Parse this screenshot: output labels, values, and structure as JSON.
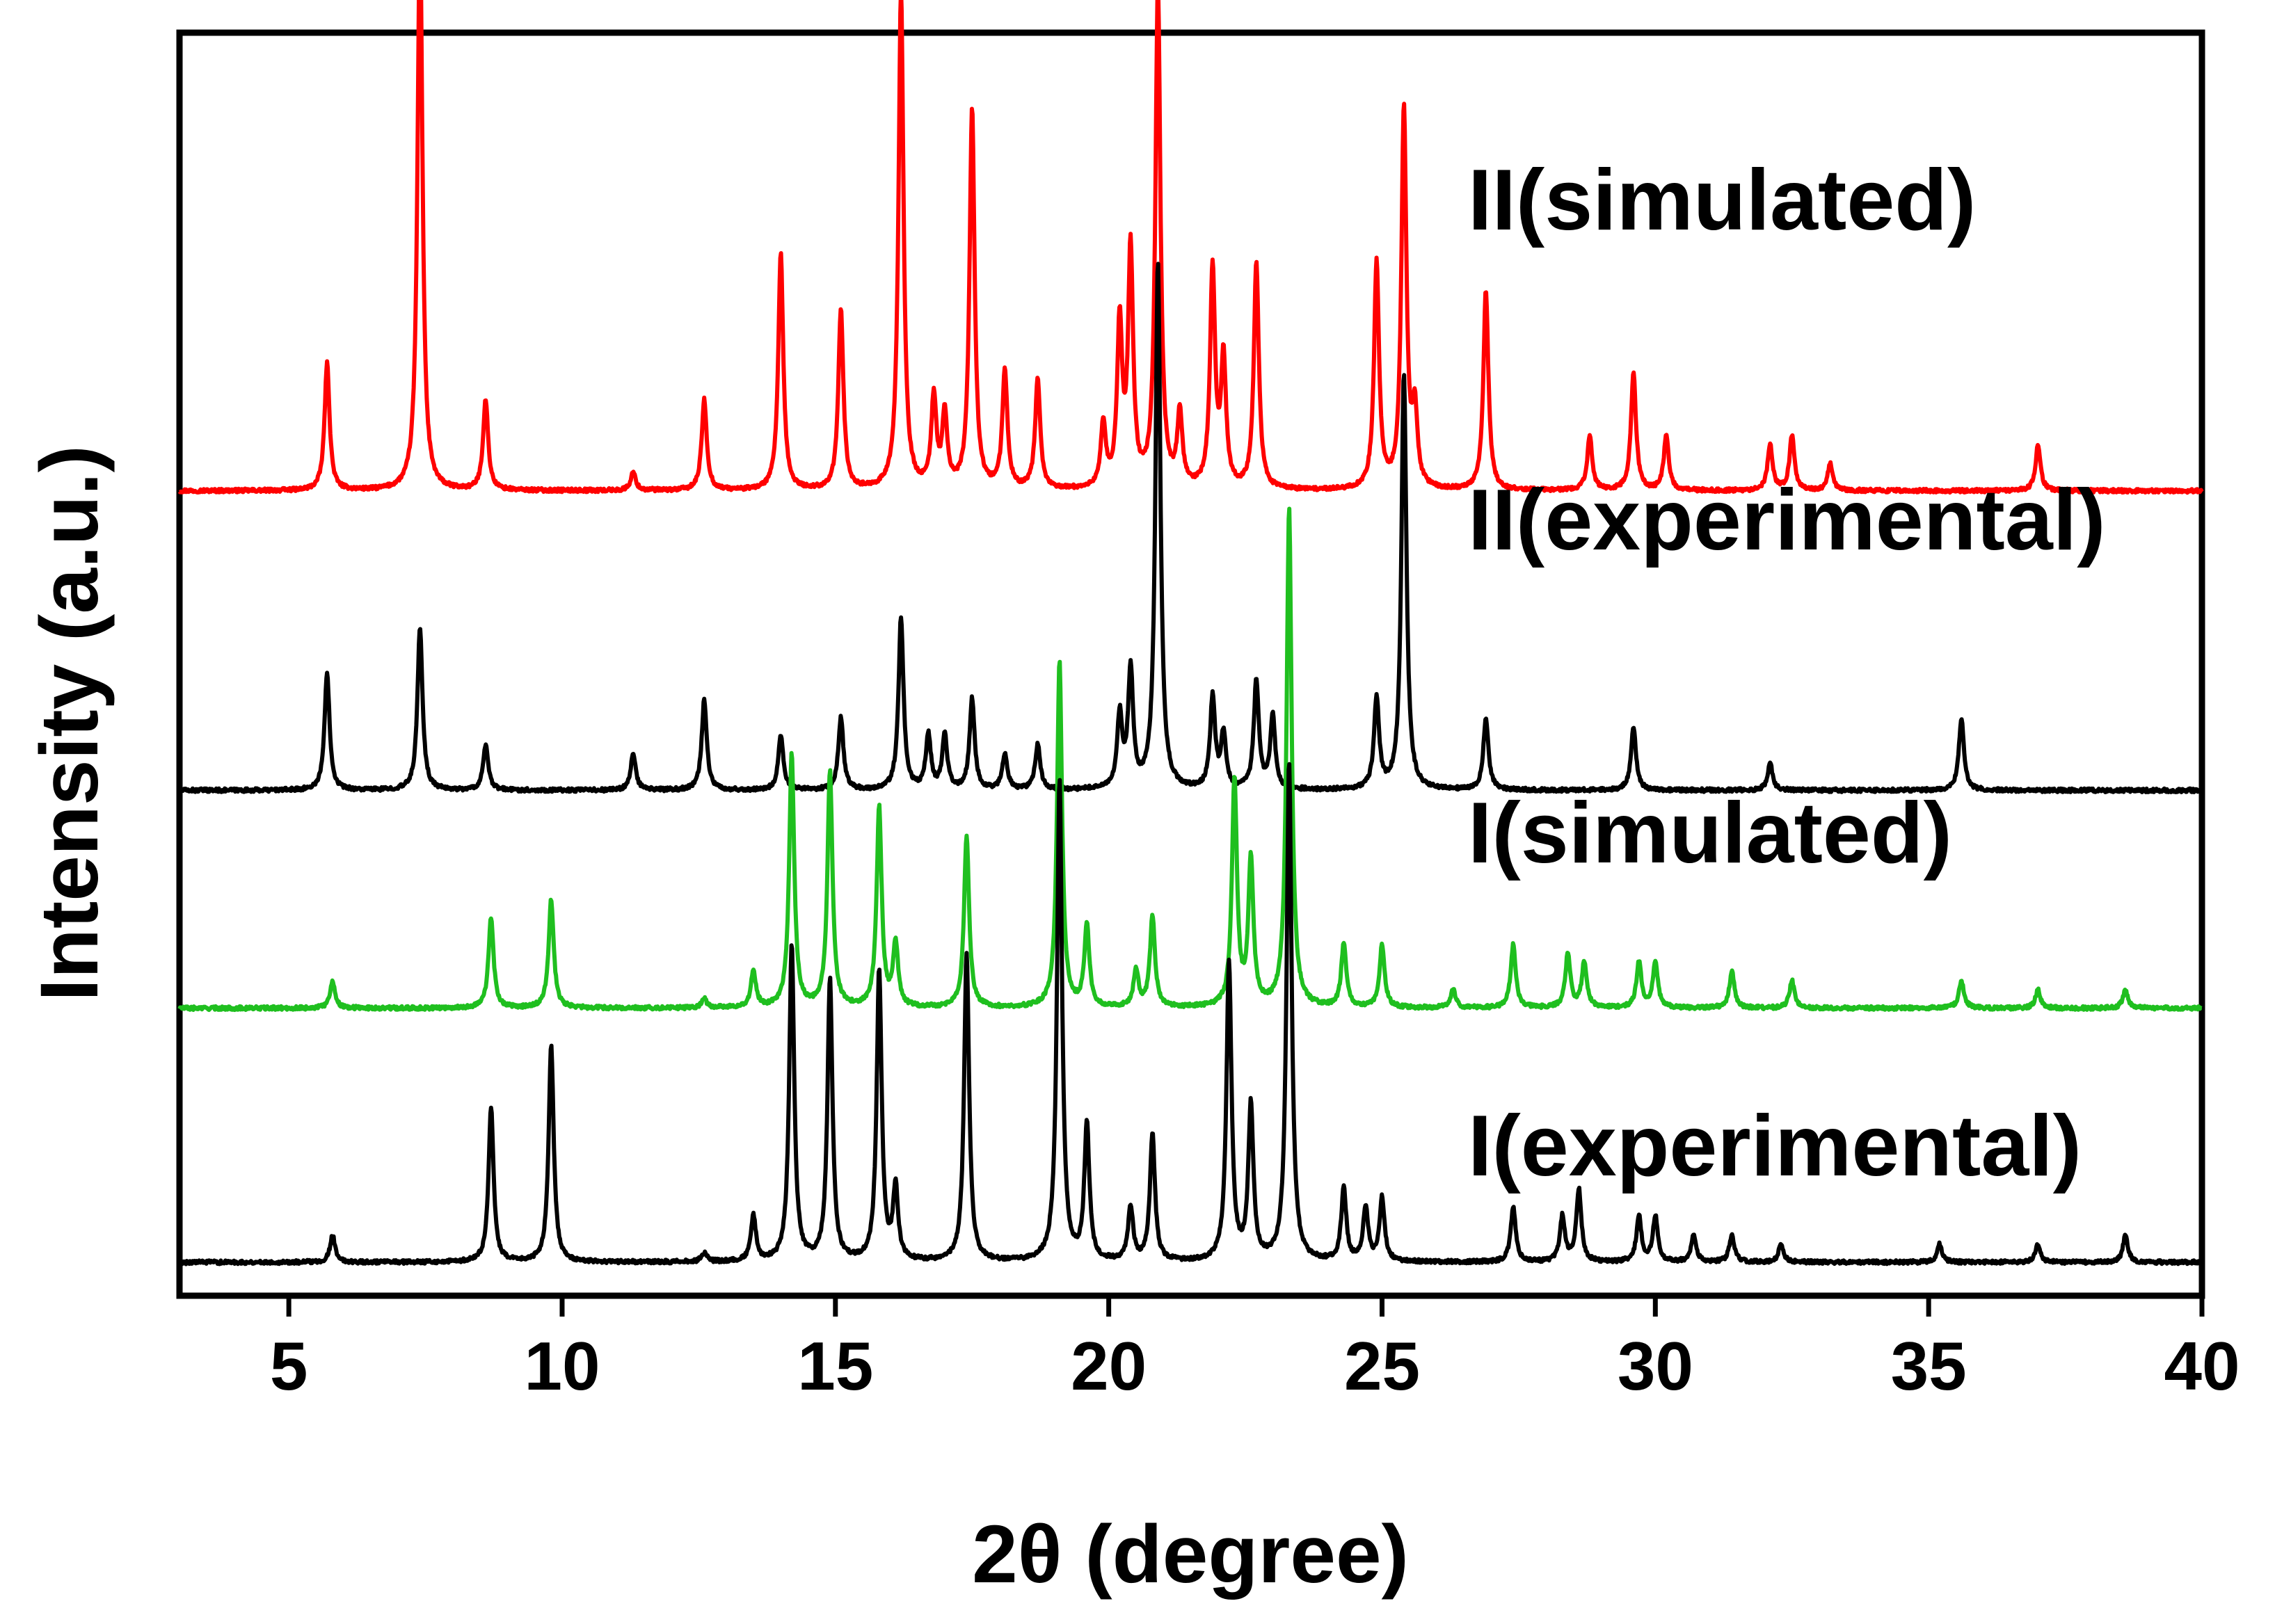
{
  "chart_data": {
    "type": "line",
    "xlabel": "2θ (degree)",
    "ylabel": "Intensity (a.u.)",
    "xlim": [
      3,
      40
    ],
    "x_ticks": [
      5,
      10,
      15,
      20,
      25,
      30,
      35,
      40
    ],
    "x_tick_labels": [
      "5",
      "10",
      "15",
      "20",
      "25",
      "30",
      "35",
      "40"
    ],
    "y_ticks_shown": false,
    "grid": false,
    "legend": "none; series labels printed beside each curve",
    "series": [
      {
        "name": "II(simulated)",
        "color": "#ff0000",
        "offset": 0.85,
        "peaks": [
          [
            5.7,
            0.14
          ],
          [
            7.4,
            0.62
          ],
          [
            8.6,
            0.1
          ],
          [
            11.3,
            0.02
          ],
          [
            12.6,
            0.1
          ],
          [
            14.0,
            0.26
          ],
          [
            15.1,
            0.2
          ],
          [
            16.2,
            0.55
          ],
          [
            16.8,
            0.1
          ],
          [
            17.0,
            0.08
          ],
          [
            17.5,
            0.42
          ],
          [
            18.1,
            0.13
          ],
          [
            18.7,
            0.12
          ],
          [
            19.9,
            0.07
          ],
          [
            20.2,
            0.18
          ],
          [
            20.4,
            0.26
          ],
          [
            20.9,
            0.55
          ],
          [
            21.3,
            0.08
          ],
          [
            21.9,
            0.24
          ],
          [
            22.1,
            0.14
          ],
          [
            22.7,
            0.25
          ],
          [
            24.9,
            0.25
          ],
          [
            25.4,
            0.42
          ],
          [
            25.6,
            0.08
          ],
          [
            26.9,
            0.22
          ],
          [
            28.8,
            0.06
          ],
          [
            29.6,
            0.13
          ],
          [
            30.2,
            0.06
          ],
          [
            32.1,
            0.05
          ],
          [
            32.5,
            0.06
          ],
          [
            33.2,
            0.03
          ],
          [
            37.0,
            0.05
          ]
        ]
      },
      {
        "name": "II(experimental)",
        "color": "#000000",
        "offset": 0.52,
        "peaks": [
          [
            5.7,
            0.13
          ],
          [
            7.4,
            0.18
          ],
          [
            8.6,
            0.05
          ],
          [
            11.3,
            0.04
          ],
          [
            12.6,
            0.1
          ],
          [
            14.0,
            0.06
          ],
          [
            15.1,
            0.08
          ],
          [
            16.2,
            0.19
          ],
          [
            16.7,
            0.06
          ],
          [
            17.0,
            0.06
          ],
          [
            17.5,
            0.1
          ],
          [
            18.1,
            0.04
          ],
          [
            18.7,
            0.05
          ],
          [
            20.2,
            0.08
          ],
          [
            20.4,
            0.13
          ],
          [
            20.9,
            0.58
          ],
          [
            21.9,
            0.1
          ],
          [
            22.1,
            0.06
          ],
          [
            22.7,
            0.12
          ],
          [
            23.0,
            0.08
          ],
          [
            24.9,
            0.1
          ],
          [
            25.4,
            0.46
          ],
          [
            26.9,
            0.08
          ],
          [
            29.6,
            0.07
          ],
          [
            32.1,
            0.03
          ],
          [
            35.6,
            0.08
          ]
        ]
      },
      {
        "name": "I(simulated)",
        "color": "#1fbf1f",
        "offset": 0.28,
        "peaks": [
          [
            5.8,
            0.03
          ],
          [
            8.7,
            0.1
          ],
          [
            9.8,
            0.12
          ],
          [
            12.6,
            0.01
          ],
          [
            13.5,
            0.04
          ],
          [
            14.2,
            0.28
          ],
          [
            14.9,
            0.26
          ],
          [
            15.8,
            0.22
          ],
          [
            16.1,
            0.07
          ],
          [
            17.4,
            0.19
          ],
          [
            19.1,
            0.38
          ],
          [
            19.6,
            0.09
          ],
          [
            20.5,
            0.04
          ],
          [
            20.8,
            0.1
          ],
          [
            22.3,
            0.25
          ],
          [
            22.6,
            0.16
          ],
          [
            23.3,
            0.55
          ],
          [
            24.3,
            0.07
          ],
          [
            25.0,
            0.07
          ],
          [
            26.3,
            0.02
          ],
          [
            27.4,
            0.07
          ],
          [
            28.4,
            0.06
          ],
          [
            28.7,
            0.05
          ],
          [
            29.7,
            0.05
          ],
          [
            30.0,
            0.05
          ],
          [
            31.4,
            0.04
          ],
          [
            32.5,
            0.03
          ],
          [
            35.6,
            0.03
          ],
          [
            37.0,
            0.02
          ],
          [
            38.6,
            0.02
          ]
        ]
      },
      {
        "name": "I(experimental)",
        "color": "#000000",
        "offset": 0.0,
        "peaks": [
          [
            5.8,
            0.03
          ],
          [
            8.7,
            0.17
          ],
          [
            9.8,
            0.24
          ],
          [
            12.6,
            0.01
          ],
          [
            13.5,
            0.05
          ],
          [
            14.2,
            0.35
          ],
          [
            14.9,
            0.31
          ],
          [
            15.8,
            0.32
          ],
          [
            16.1,
            0.08
          ],
          [
            17.4,
            0.34
          ],
          [
            19.1,
            0.53
          ],
          [
            19.6,
            0.15
          ],
          [
            20.4,
            0.06
          ],
          [
            20.8,
            0.14
          ],
          [
            22.2,
            0.33
          ],
          [
            22.6,
            0.17
          ],
          [
            23.3,
            0.55
          ],
          [
            24.3,
            0.08
          ],
          [
            24.7,
            0.06
          ],
          [
            25.0,
            0.07
          ],
          [
            27.4,
            0.06
          ],
          [
            28.3,
            0.05
          ],
          [
            28.6,
            0.08
          ],
          [
            29.7,
            0.05
          ],
          [
            30.0,
            0.05
          ],
          [
            30.7,
            0.03
          ],
          [
            31.4,
            0.03
          ],
          [
            32.3,
            0.02
          ],
          [
            35.2,
            0.02
          ],
          [
            37.0,
            0.02
          ],
          [
            38.6,
            0.03
          ]
        ]
      }
    ]
  }
}
